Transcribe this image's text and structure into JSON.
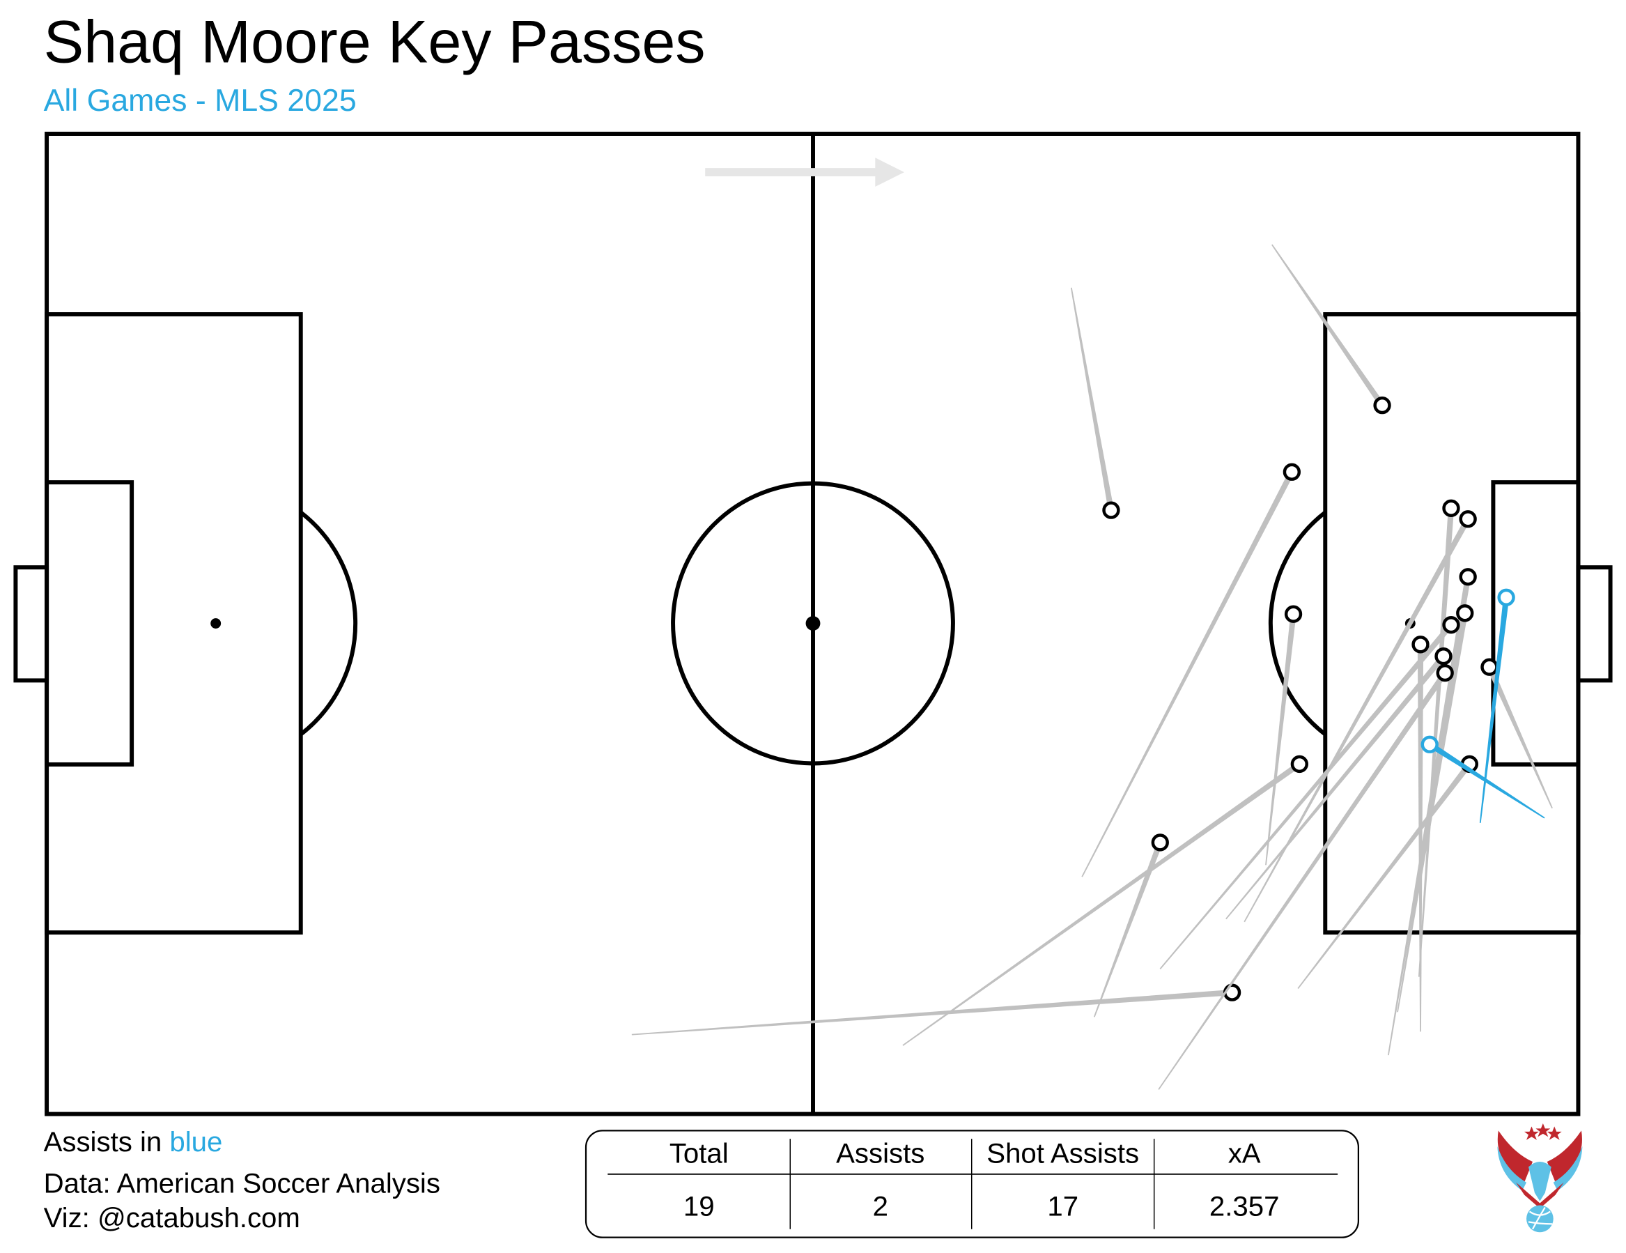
{
  "title": "Shaq Moore Key Passes",
  "subtitle": "All Games - MLS 2025",
  "legend": {
    "prefix": "Assists in ",
    "highlight": "blue"
  },
  "credits": {
    "data": "Data: American Soccer Analysis",
    "viz": "Viz: @catabush.com"
  },
  "colors": {
    "assist": "#29a8e0",
    "key_pass": "#c0c0c0",
    "arrow": "#e6e6e6",
    "pitch_lines": "#000000"
  },
  "summary_table": {
    "headers": [
      "Total",
      "Assists",
      "Shot Assists",
      "xA"
    ],
    "values": [
      "19",
      "2",
      "17",
      "2.357"
    ]
  },
  "chart_data": {
    "type": "pitch-pass-map",
    "attack_direction": "left-to-right",
    "coordinate_range": {
      "x": [
        0,
        100
      ],
      "y": [
        0,
        100
      ]
    },
    "passes": [
      {
        "type": "shot_assist",
        "start": [
          80.0,
          11.3
        ],
        "end": [
          87.2,
          27.7
        ]
      },
      {
        "type": "shot_assist",
        "start": [
          66.9,
          15.7
        ],
        "end": [
          69.5,
          38.4
        ]
      },
      {
        "type": "shot_assist",
        "start": [
          67.6,
          75.8
        ],
        "end": [
          81.3,
          34.5
        ]
      },
      {
        "type": "shot_assist",
        "start": [
          79.6,
          74.6
        ],
        "end": [
          81.4,
          49.0
        ]
      },
      {
        "type": "shot_assist",
        "start": [
          55.9,
          93.0
        ],
        "end": [
          81.8,
          64.3
        ]
      },
      {
        "type": "shot_assist",
        "start": [
          68.4,
          90.1
        ],
        "end": [
          72.7,
          72.3
        ]
      },
      {
        "type": "shot_assist",
        "start": [
          38.2,
          91.9
        ],
        "end": [
          77.4,
          87.6
        ]
      },
      {
        "type": "shot_assist",
        "start": [
          89.6,
          86.0
        ],
        "end": [
          91.7,
          38.2
        ]
      },
      {
        "type": "shot_assist",
        "start": [
          78.2,
          80.4
        ],
        "end": [
          92.8,
          39.3
        ]
      },
      {
        "type": "shot_assist",
        "start": [
          87.6,
          94.0
        ],
        "end": [
          92.8,
          45.2
        ]
      },
      {
        "type": "shot_assist",
        "start": [
          88.2,
          89.6
        ],
        "end": [
          92.6,
          48.9
        ]
      },
      {
        "type": "shot_assist",
        "start": [
          72.7,
          85.2
        ],
        "end": [
          91.7,
          50.1
        ]
      },
      {
        "type": "shot_assist",
        "start": [
          89.7,
          91.6
        ],
        "end": [
          89.7,
          52.1
        ]
      },
      {
        "type": "shot_assist",
        "start": [
          77.0,
          80.1
        ],
        "end": [
          91.2,
          53.3
        ]
      },
      {
        "type": "shot_assist",
        "start": [
          72.6,
          97.5
        ],
        "end": [
          91.3,
          55.0
        ]
      },
      {
        "type": "shot_assist",
        "start": [
          98.3,
          68.8
        ],
        "end": [
          94.2,
          54.4
        ]
      },
      {
        "type": "shot_assist",
        "start": [
          81.7,
          87.2
        ],
        "end": [
          92.9,
          64.3
        ]
      },
      {
        "type": "assist",
        "start": [
          93.6,
          70.3
        ],
        "end": [
          95.3,
          47.3
        ]
      },
      {
        "type": "assist",
        "start": [
          97.8,
          69.8
        ],
        "end": [
          90.3,
          62.3
        ]
      }
    ]
  }
}
